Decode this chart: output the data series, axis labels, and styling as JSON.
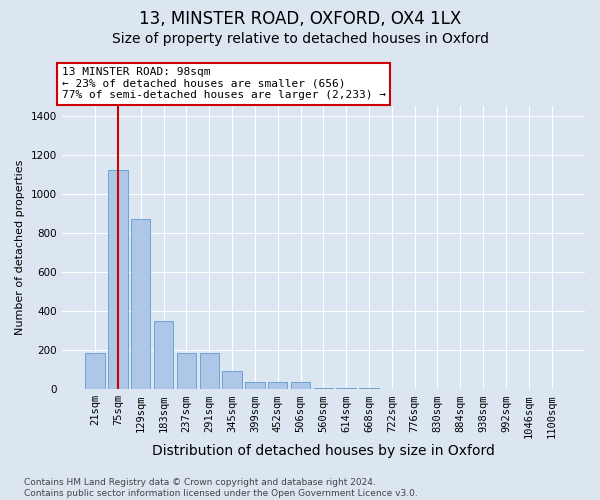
{
  "title1": "13, MINSTER ROAD, OXFORD, OX4 1LX",
  "title2": "Size of property relative to detached houses in Oxford",
  "xlabel": "Distribution of detached houses by size in Oxford",
  "ylabel": "Number of detached properties",
  "bar_labels": [
    "21sqm",
    "75sqm",
    "129sqm",
    "183sqm",
    "237sqm",
    "291sqm",
    "345sqm",
    "399sqm",
    "452sqm",
    "506sqm",
    "560sqm",
    "614sqm",
    "668sqm",
    "722sqm",
    "776sqm",
    "830sqm",
    "884sqm",
    "938sqm",
    "992sqm",
    "1046sqm",
    "1100sqm"
  ],
  "bar_values": [
    185,
    1120,
    870,
    350,
    185,
    185,
    95,
    40,
    40,
    40,
    5,
    5,
    5,
    0,
    0,
    0,
    0,
    0,
    0,
    0,
    0
  ],
  "bar_color": "#aec6e8",
  "bar_edge_color": "#5b9bd5",
  "bg_color": "#dce6f1",
  "ann_line1": "13 MINSTER ROAD: 98sqm",
  "ann_line2": "← 23% of detached houses are smaller (656)",
  "ann_line3": "77% of semi-detached houses are larger (2,233) →",
  "ann_fc": "#ffffff",
  "ann_ec": "#cc0000",
  "vline_idx": 1,
  "vline_color": "#cc0000",
  "ylim": [
    0,
    1450
  ],
  "yticks": [
    0,
    200,
    400,
    600,
    800,
    1000,
    1200,
    1400
  ],
  "footnote": "Contains HM Land Registry data © Crown copyright and database right 2024.\nContains public sector information licensed under the Open Government Licence v3.0.",
  "title1_fs": 12,
  "title2_fs": 10,
  "xlabel_fs": 10,
  "ylabel_fs": 8,
  "tick_fs": 7.5,
  "ann_fs": 8,
  "footnote_fs": 6.5
}
